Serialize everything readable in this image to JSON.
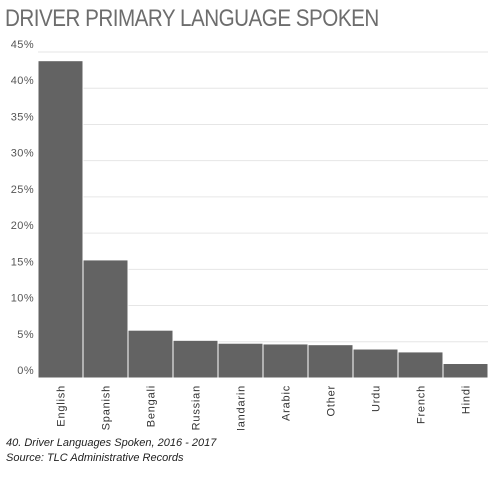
{
  "chart_data": {
    "type": "bar",
    "title": "DRIVER PRIMARY LANGUAGE SPOKEN",
    "categories": [
      "English",
      "Spanish",
      "Bengali",
      "Russian",
      "Mandarin",
      "Arabic",
      "Other",
      "Urdu",
      "French",
      "Hindi"
    ],
    "values": [
      43.8,
      16.3,
      6.6,
      5.2,
      4.8,
      4.7,
      4.6,
      4.0,
      3.6,
      2.0
    ],
    "yticks": [
      "0%",
      "5%",
      "10%",
      "15%",
      "20%",
      "25%",
      "30%",
      "35%",
      "40%",
      "45%"
    ],
    "ylim": [
      0,
      45
    ],
    "y_unit": "%",
    "grid": true,
    "bar_color": "#636363",
    "xlabel": "",
    "ylabel": ""
  },
  "caption": {
    "line1": "40. Driver Languages Spoken, 2016 - 2017",
    "line2": "Source: TLC Administrative Records"
  }
}
